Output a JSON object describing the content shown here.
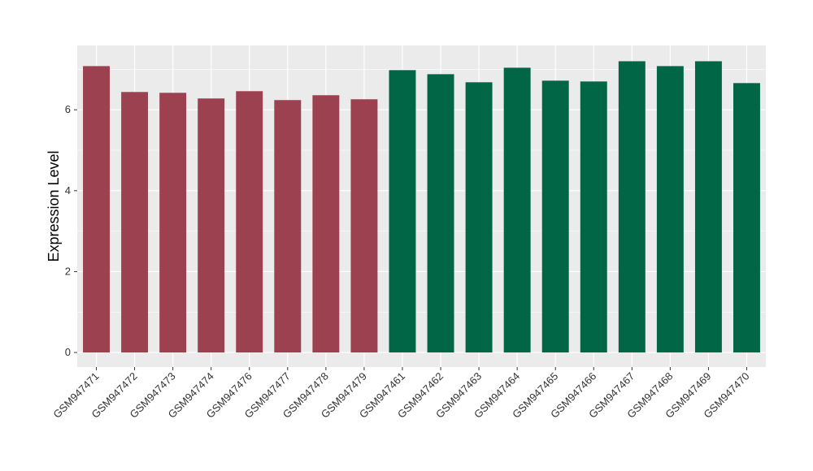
{
  "chart_data": {
    "type": "bar",
    "title": "",
    "xlabel": "",
    "ylabel": "Expression Level",
    "ylim": [
      -0.36,
      7.59
    ],
    "yticks": [
      0,
      2,
      4,
      6
    ],
    "grid": true,
    "legend": "none",
    "categories": [
      "GSM947471",
      "GSM947472",
      "GSM947473",
      "GSM947474",
      "GSM947476",
      "GSM947477",
      "GSM947478",
      "GSM947479",
      "GSM947461",
      "GSM947462",
      "GSM947463",
      "GSM947464",
      "GSM947465",
      "GSM947466",
      "GSM947467",
      "GSM947468",
      "GSM947469",
      "GSM947470"
    ],
    "values": [
      7.08,
      6.44,
      6.42,
      6.28,
      6.46,
      6.24,
      6.36,
      6.26,
      6.98,
      6.88,
      6.68,
      7.04,
      6.72,
      6.7,
      7.2,
      7.08,
      7.2,
      6.66
    ],
    "groups": [
      0,
      0,
      0,
      0,
      0,
      0,
      0,
      0,
      1,
      1,
      1,
      1,
      1,
      1,
      1,
      1,
      1,
      1
    ],
    "group_colors": [
      "#9b4150",
      "#006646"
    ]
  }
}
